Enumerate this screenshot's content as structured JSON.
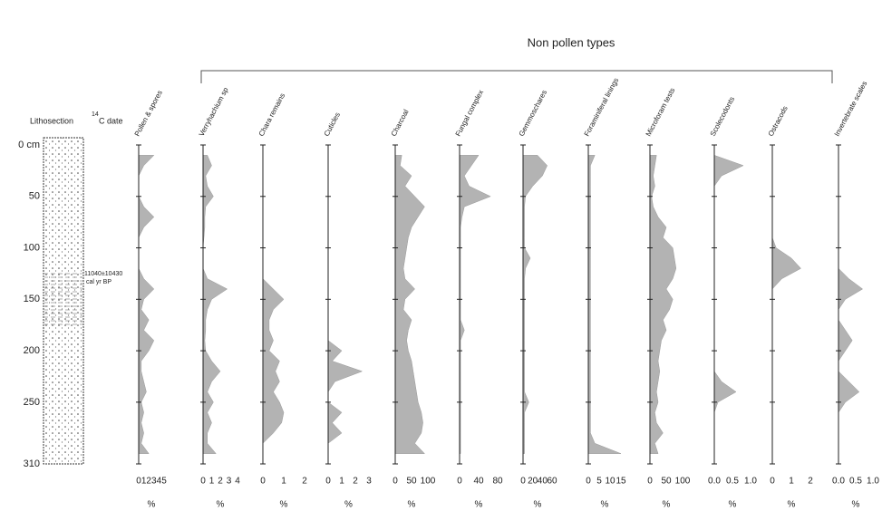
{
  "chart_data": {
    "type": "stratigraphic",
    "title": "Non pollen types",
    "lithology_label": "Lithosection",
    "date_superscript": "14",
    "date_label": "C date",
    "annotation": [
      "11040±10430",
      "cal yr BP"
    ],
    "ylim": [
      0,
      310
    ],
    "yticks": [
      {
        "value": 0,
        "label": "0 cm"
      },
      50,
      100,
      150,
      200,
      250,
      310
    ],
    "y": [
      10,
      20,
      30,
      40,
      50,
      60,
      70,
      80,
      90,
      100,
      110,
      120,
      130,
      140,
      150,
      160,
      170,
      180,
      190,
      200,
      210,
      220,
      230,
      240,
      250,
      260,
      270,
      280,
      290,
      300
    ],
    "series": [
      {
        "name": "Pollen & spores",
        "color": "#b3b3b3",
        "xlim": [
          0,
          5
        ],
        "xticks": [
          0,
          1,
          2,
          3,
          4,
          5
        ],
        "xlabel": "%",
        "values": [
          3,
          1,
          0,
          0,
          0,
          1,
          3,
          1,
          0,
          0,
          0,
          0,
          1,
          3,
          1,
          0.5,
          2,
          1,
          3,
          2,
          0.5,
          0.5,
          1,
          1.5,
          0.5,
          1,
          0.5,
          1,
          0.5,
          2
        ]
      },
      {
        "name": "Verryhachium sp",
        "color": "#b3b3b3",
        "xlim": [
          0,
          4
        ],
        "xticks": [
          0,
          1,
          2,
          3,
          4
        ],
        "xlabel": "%",
        "values": [
          0.5,
          1,
          0.3,
          0.5,
          1.2,
          0.3,
          0.2,
          0.2,
          0.1,
          0,
          0,
          0,
          0.5,
          2.8,
          1,
          0.5,
          0.3,
          0.3,
          0.2,
          0.3,
          1,
          2,
          1,
          0.5,
          1.2,
          0.5,
          1,
          0.5,
          0.5,
          1.5
        ]
      },
      {
        "name": "Chara remains",
        "color": "#b3b3b3",
        "xlim": [
          0,
          2
        ],
        "xticks": [
          0,
          1,
          2
        ],
        "xlabel": "%",
        "values": [
          0,
          0,
          0,
          0,
          0,
          0,
          0,
          0,
          0,
          0,
          0,
          0,
          0,
          0.5,
          1,
          0.5,
          0.3,
          0.3,
          0.5,
          0.3,
          0.8,
          0.6,
          0.8,
          0.5,
          0.8,
          1,
          0.9,
          0.5,
          0,
          0
        ]
      },
      {
        "name": "Cuticles",
        "color": "#b3b3b3",
        "xlim": [
          0,
          3
        ],
        "xticks": [
          0,
          1,
          2,
          3
        ],
        "xlabel": "%",
        "values": [
          0,
          0,
          0,
          0,
          0,
          0,
          0,
          0,
          0,
          0,
          0,
          0,
          0,
          0,
          0,
          0,
          0,
          0,
          0,
          1,
          0.3,
          2.5,
          0.5,
          0,
          0,
          1,
          0.3,
          1,
          0,
          0
        ]
      },
      {
        "name": "Charcoal",
        "color": "#b3b3b3",
        "xlim": [
          0,
          100
        ],
        "xticks": [
          0,
          50,
          100
        ],
        "xlabel": "%",
        "values": [
          20,
          15,
          50,
          30,
          60,
          90,
          70,
          50,
          40,
          35,
          30,
          25,
          30,
          60,
          30,
          25,
          50,
          40,
          35,
          40,
          50,
          55,
          60,
          65,
          70,
          80,
          85,
          80,
          60,
          90
        ]
      },
      {
        "name": "Fungal complex",
        "color": "#b3b3b3",
        "xlim": [
          0,
          80
        ],
        "xticks": [
          0,
          40,
          80
        ],
        "xlabel": "%",
        "values": [
          40,
          25,
          10,
          20,
          65,
          10,
          5,
          2,
          2,
          2,
          2,
          2,
          2,
          2,
          2,
          2,
          2,
          10,
          2,
          2,
          2,
          2,
          2,
          2,
          2,
          2,
          2,
          2,
          2,
          2
        ]
      },
      {
        "name": "Gemmoschares",
        "color": "#b3b3b3",
        "xlim": [
          0,
          60
        ],
        "xticks": [
          0,
          20,
          40,
          60
        ],
        "xlabel": "%",
        "values": [
          30,
          50,
          40,
          20,
          5,
          3,
          3,
          3,
          3,
          3,
          15,
          5,
          3,
          3,
          3,
          3,
          3,
          3,
          3,
          3,
          3,
          3,
          3,
          3,
          12,
          3,
          3,
          3,
          3,
          3
        ]
      },
      {
        "name": "Foraminiferal linings",
        "color": "#b3b3b3",
        "xlim": [
          0,
          15
        ],
        "xticks": [
          0,
          5,
          10,
          15
        ],
        "xlabel": "%",
        "values": [
          3,
          1,
          1,
          1,
          1,
          1,
          1,
          1,
          1,
          1,
          1,
          1,
          1,
          1,
          1,
          1,
          1,
          1,
          1,
          1,
          1,
          1,
          1,
          1,
          1,
          1,
          1,
          1,
          3,
          15
        ]
      },
      {
        "name": "Microforam tests",
        "color": "#b3b3b3",
        "xlim": [
          0,
          100
        ],
        "xticks": [
          0,
          50,
          100
        ],
        "xlabel": "%",
        "values": [
          20,
          15,
          10,
          15,
          5,
          10,
          25,
          50,
          40,
          70,
          75,
          80,
          70,
          50,
          70,
          60,
          40,
          50,
          35,
          30,
          25,
          30,
          25,
          20,
          25,
          15,
          20,
          40,
          15,
          25
        ]
      },
      {
        "name": "Scolecodonts",
        "color": "#b3b3b3",
        "xlim": [
          0,
          1
        ],
        "xticks": [
          {
            "value": 0,
            "label": "0.0"
          },
          0.5,
          {
            "value": 1,
            "label": "1.0"
          }
        ],
        "xlabel": "%",
        "values": [
          0,
          0.8,
          0.2,
          0,
          0,
          0,
          0,
          0,
          0,
          0,
          0,
          0,
          0,
          0,
          0,
          0,
          0,
          0,
          0,
          0,
          0,
          0,
          0.2,
          0.6,
          0.1,
          0,
          0,
          0,
          0,
          0
        ]
      },
      {
        "name": "Ostracods",
        "color": "#b3b3b3",
        "xlim": [
          0,
          2
        ],
        "xticks": [
          0,
          1,
          2
        ],
        "xlabel": "%",
        "values": [
          0,
          0,
          0,
          0,
          0,
          0,
          0,
          0,
          0,
          0.2,
          1,
          1.5,
          0.5,
          0,
          0,
          0,
          0,
          0,
          0,
          0,
          0,
          0,
          0,
          0,
          0,
          0,
          0,
          0,
          0,
          0
        ]
      },
      {
        "name": "Invertebrate scales",
        "color": "#b3b3b3",
        "xlim": [
          0,
          1
        ],
        "xticks": [
          {
            "value": 0,
            "label": "0.0"
          },
          0.5,
          {
            "value": 1,
            "label": "1.0"
          }
        ],
        "xlabel": "%",
        "values": [
          0,
          0,
          0,
          0,
          0,
          0,
          0,
          0,
          0,
          0,
          0,
          0,
          0.3,
          0.7,
          0.2,
          0,
          0,
          0.2,
          0.4,
          0.2,
          0,
          0,
          0.3,
          0.6,
          0.2,
          0,
          0,
          0,
          0,
          0
        ]
      }
    ]
  }
}
